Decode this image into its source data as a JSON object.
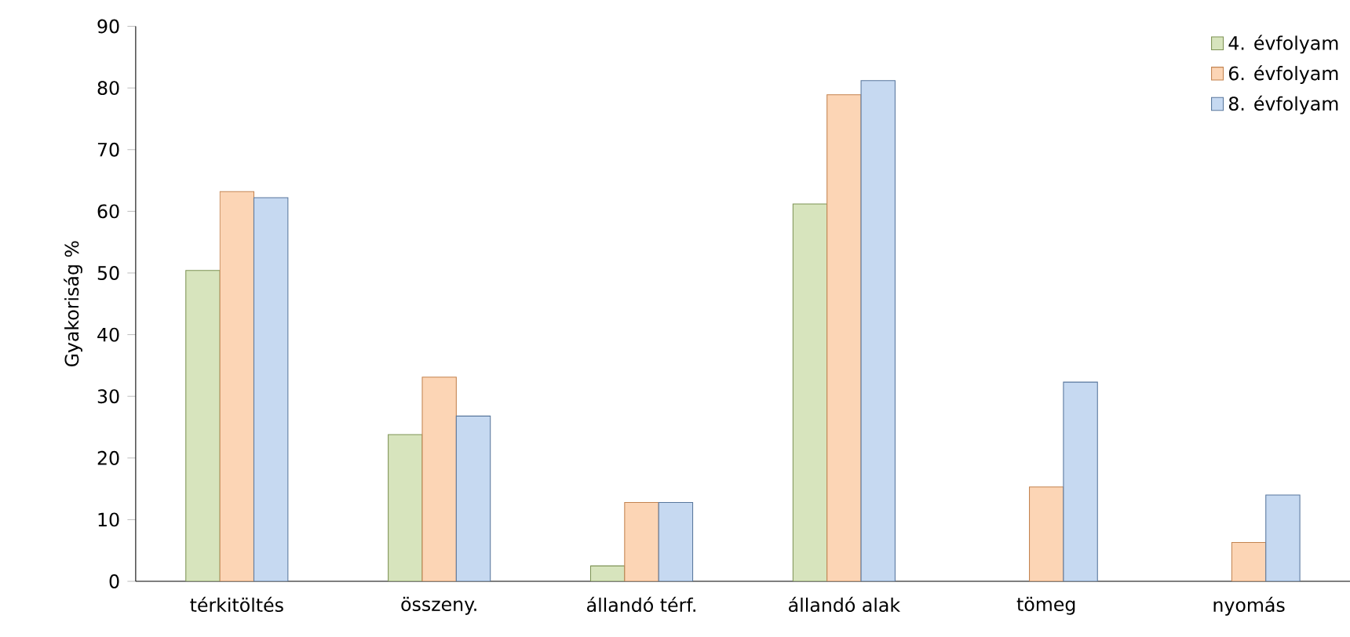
{
  "chart_data": {
    "type": "bar",
    "ylabel": "Gyakoriság %",
    "categories": [
      "térkitöltés",
      "összeny.",
      "állandó térf.",
      "állandó alak",
      "tömeg",
      "nyomás"
    ],
    "series": [
      {
        "name": "4. évfolyam",
        "color": "#d7e4bd",
        "values": [
          50.4,
          23.8,
          2.5,
          61.2,
          null,
          null
        ]
      },
      {
        "name": "6. évfolyam",
        "color": "#fcd5b5",
        "values": [
          63.2,
          33.1,
          12.8,
          78.9,
          15.3,
          6.3
        ]
      },
      {
        "name": "8. évfolyam",
        "color": "#c6d9f1",
        "values": [
          62.2,
          26.8,
          12.8,
          81.2,
          32.3,
          14.0
        ]
      }
    ],
    "ylim": [
      0,
      90
    ],
    "yticks": [
      0,
      10,
      20,
      30,
      40,
      50,
      60,
      70,
      80,
      90
    ],
    "grid": false,
    "legend": "top right"
  }
}
